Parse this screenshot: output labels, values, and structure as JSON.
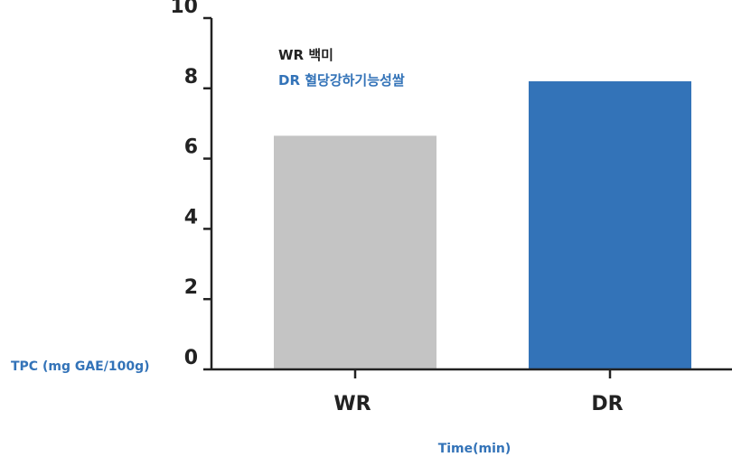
{
  "chart_data": {
    "type": "bar",
    "categories": [
      "WR",
      "DR"
    ],
    "values": [
      6.65,
      8.2
    ],
    "colors": [
      "#c4c4c4",
      "#3373b8"
    ],
    "ylim": [
      0,
      10
    ],
    "yticks": [
      0,
      2,
      4,
      6,
      8,
      10
    ],
    "ylabel": "TPC (mg GAE/100g)",
    "xlabel": "Time(min)",
    "legend": [
      {
        "label": "WR 백미",
        "color": "#222222"
      },
      {
        "label": "DR  혈당강하기능성쌀",
        "color": "#3373b8"
      }
    ],
    "axis_title_color": "#3373b8",
    "grid": false,
    "legend_position": "top-left"
  }
}
